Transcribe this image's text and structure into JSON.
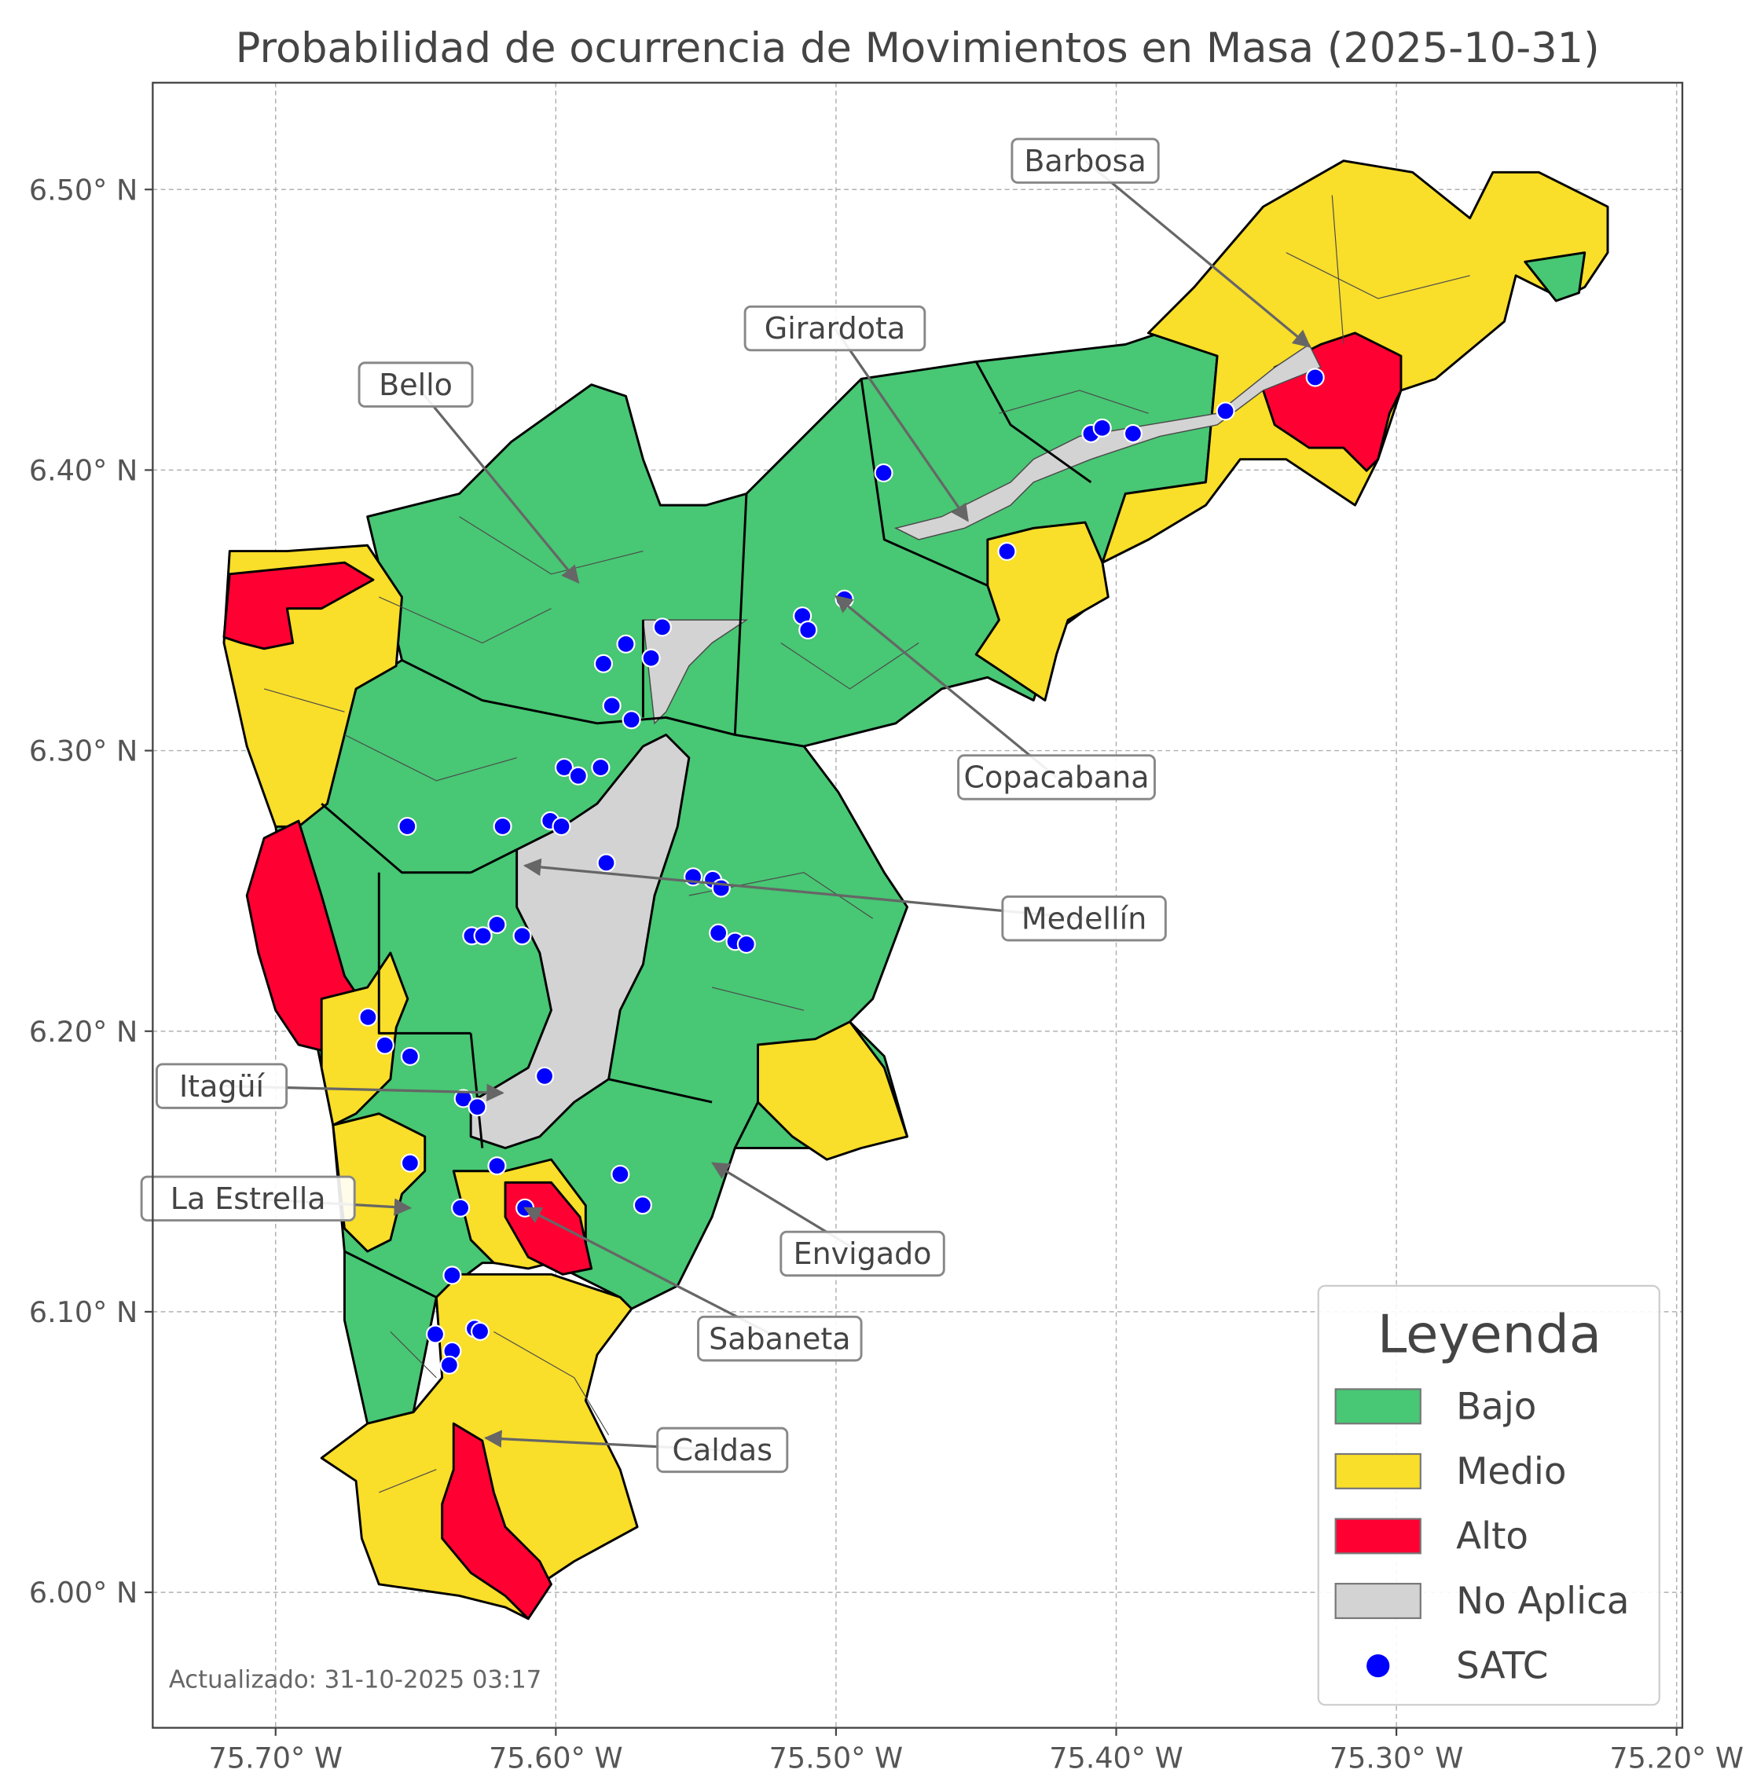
{
  "chart_data": {
    "type": "map",
    "title": "Probabilidad de ocurrencia de Movimientos en Masa (2025-10-31)",
    "x_ticks": [
      "75.70° W",
      "75.60° W",
      "75.50° W",
      "75.40° W",
      "75.30° W",
      "75.20° W"
    ],
    "y_ticks": [
      "6.50° N",
      "6.40° N",
      "6.30° N",
      "6.20° N",
      "6.10° N",
      "6.00° N"
    ],
    "xlim": [
      -75.744,
      -75.196
    ],
    "ylim": [
      5.957,
      6.537
    ],
    "grid": true,
    "footer": "Actualizado: 31-10-2025 03:17",
    "legend": {
      "title": "Leyenda",
      "placement": "bottom-right",
      "items": [
        {
          "label": "Bajo",
          "color": "#48c774",
          "kind": "patch"
        },
        {
          "label": "Medio",
          "color": "#f9de2a",
          "kind": "patch"
        },
        {
          "label": "Alto",
          "color": "#ff0033",
          "kind": "patch"
        },
        {
          "label": "No Aplica",
          "color": "#d3d3d3",
          "kind": "patch"
        },
        {
          "label": "SATC",
          "color": "#0000ff",
          "kind": "point"
        }
      ]
    },
    "municipalities": [
      {
        "name": "Barbosa",
        "lon": -75.331,
        "lat": 6.444
      },
      {
        "name": "Girardota",
        "lon": -75.453,
        "lat": 6.382
      },
      {
        "name": "Bello",
        "lon": -75.592,
        "lat": 6.36
      },
      {
        "name": "Copacabana",
        "lon": -75.5,
        "lat": 6.355
      },
      {
        "name": "Medellín",
        "lon": -75.611,
        "lat": 6.259
      },
      {
        "name": "Itagüí",
        "lon": -75.619,
        "lat": 6.178
      },
      {
        "name": "La Estrella",
        "lon": -75.652,
        "lat": 6.137
      },
      {
        "name": "Envigado",
        "lon": -75.544,
        "lat": 6.153
      },
      {
        "name": "Sabaneta",
        "lon": -75.611,
        "lat": 6.137
      },
      {
        "name": "Caldas",
        "lon": -75.625,
        "lat": 6.055
      }
    ],
    "satc_points": [
      [
        -75.329,
        6.433
      ],
      [
        -75.361,
        6.421
      ],
      [
        -75.409,
        6.413
      ],
      [
        -75.405,
        6.415
      ],
      [
        -75.394,
        6.413
      ],
      [
        -75.483,
        6.399
      ],
      [
        -75.439,
        6.371
      ],
      [
        -75.497,
        6.354
      ],
      [
        -75.512,
        6.348
      ],
      [
        -75.51,
        6.343
      ],
      [
        -75.562,
        6.344
      ],
      [
        -75.575,
        6.338
      ],
      [
        -75.566,
        6.333
      ],
      [
        -75.583,
        6.331
      ],
      [
        -75.58,
        6.316
      ],
      [
        -75.573,
        6.311
      ],
      [
        -75.597,
        6.294
      ],
      [
        -75.584,
        6.294
      ],
      [
        -75.592,
        6.291
      ],
      [
        -75.653,
        6.273
      ],
      [
        -75.619,
        6.273
      ],
      [
        -75.602,
        6.275
      ],
      [
        -75.598,
        6.273
      ],
      [
        -75.582,
        6.26
      ],
      [
        -75.551,
        6.255
      ],
      [
        -75.544,
        6.254
      ],
      [
        -75.541,
        6.251
      ],
      [
        -75.621,
        6.238
      ],
      [
        -75.63,
        6.234
      ],
      [
        -75.626,
        6.234
      ],
      [
        -75.612,
        6.234
      ],
      [
        -75.542,
        6.235
      ],
      [
        -75.536,
        6.232
      ],
      [
        -75.532,
        6.231
      ],
      [
        -75.667,
        6.205
      ],
      [
        -75.661,
        6.195
      ],
      [
        -75.652,
        6.191
      ],
      [
        -75.604,
        6.184
      ],
      [
        -75.633,
        6.176
      ],
      [
        -75.628,
        6.173
      ],
      [
        -75.652,
        6.153
      ],
      [
        -75.621,
        6.152
      ],
      [
        -75.577,
        6.149
      ],
      [
        -75.569,
        6.138
      ],
      [
        -75.634,
        6.137
      ],
      [
        -75.611,
        6.137
      ],
      [
        -75.637,
        6.113
      ],
      [
        -75.643,
        6.092
      ],
      [
        -75.629,
        6.094
      ],
      [
        -75.627,
        6.093
      ],
      [
        -75.637,
        6.086
      ],
      [
        -75.638,
        6.081
      ]
    ]
  }
}
